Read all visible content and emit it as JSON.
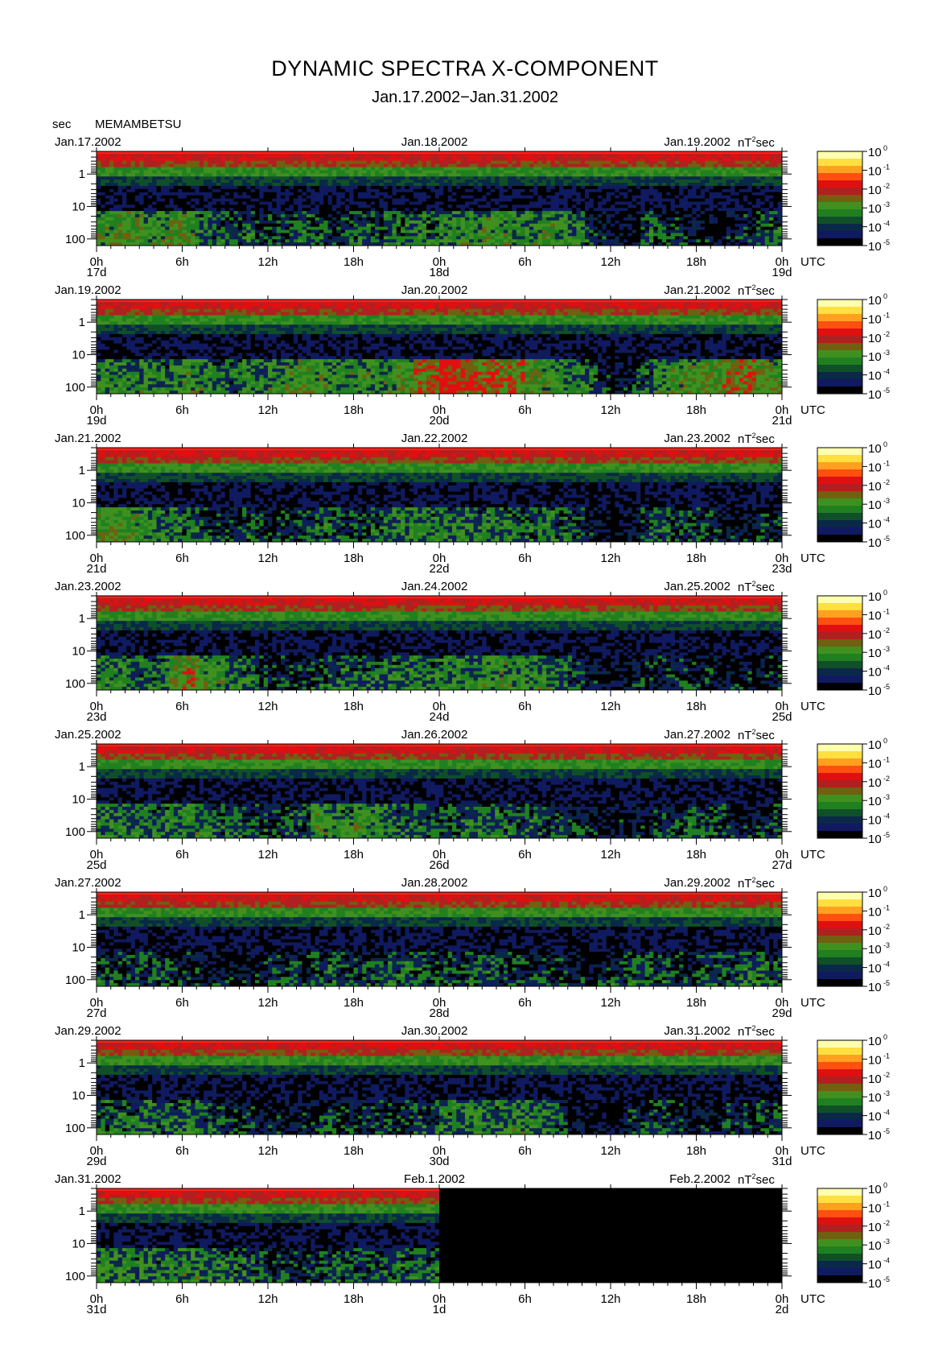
{
  "title": "DYNAMIC SPECTRA X-COMPONENT",
  "subtitle": "Jan.17.2002−Jan.31.2002",
  "station": "MEMAMBETSU",
  "y_unit": "sec",
  "x_unit": "UTC",
  "colorbar_unit": "nT",
  "colorbar_unit_sup": "2",
  "colorbar_unit_suffix": "sec",
  "colorbar": {
    "colors": [
      "#ffffb0",
      "#ffe040",
      "#ffa020",
      "#ff5010",
      "#e01010",
      "#b02020",
      "#706010",
      "#409020",
      "#208020",
      "#105028",
      "#0a2848",
      "#101a60",
      "#000000"
    ],
    "labels": [
      {
        "base": "10",
        "exp": "0"
      },
      {
        "base": "10",
        "exp": "-1"
      },
      {
        "base": "10",
        "exp": "-2"
      },
      {
        "base": "10",
        "exp": "-3"
      },
      {
        "base": "10",
        "exp": "-4"
      },
      {
        "base": "10",
        "exp": "-5"
      }
    ]
  },
  "chart_data": {
    "type": "heatmap",
    "title": "DYNAMIC SPECTRA X-COMPONENT",
    "subtitle": "Jan.17.2002−Jan.31.2002",
    "ylabel": "sec",
    "xlabel": "UTC",
    "y_scale": "log",
    "y_range_sec": [
      0.2,
      160
    ],
    "y_ticks": [
      1,
      10,
      100
    ],
    "x_ticks": [
      "0h",
      "6h",
      "12h",
      "18h",
      "0h",
      "6h",
      "12h",
      "18h",
      "0h"
    ],
    "hours_per_panel": 48,
    "color_scale": "log",
    "color_range": [
      1e-05,
      1
    ],
    "color_unit": "nT^2 sec",
    "panels": [
      {
        "date_left": "Jan.17.2002",
        "date_mid": "Jan.18.2002",
        "date_right": "Jan.19.2002",
        "day_labels": [
          "17d",
          "18d",
          "19d"
        ],
        "data_end_fraction": 1.0,
        "activity": [
          0.5,
          0.55,
          0.55,
          0.5,
          0.5,
          0.55,
          0.5,
          0.4,
          0.35,
          0.3,
          0.35,
          0.25,
          0.3,
          0.3,
          0.35,
          0.3,
          0.25,
          0.3,
          0.35,
          0.3,
          0.35,
          0.35,
          0.4,
          0.35,
          0.4,
          0.45,
          0.45,
          0.5,
          0.5,
          0.45,
          0.45,
          0.5,
          0.45,
          0.4,
          0.3,
          0.2,
          0.15,
          0.2,
          0.35,
          0.3,
          0.25,
          0.2,
          0.2,
          0.15,
          0.2,
          0.25,
          0.3,
          0.35
        ]
      },
      {
        "date_left": "Jan.19.2002",
        "date_mid": "Jan.20.2002",
        "date_right": "Jan.21.2002",
        "day_labels": [
          "19d",
          "20d",
          "21d"
        ],
        "data_end_fraction": 1.0,
        "activity": [
          0.45,
          0.45,
          0.4,
          0.45,
          0.4,
          0.45,
          0.5,
          0.45,
          0.4,
          0.35,
          0.45,
          0.4,
          0.45,
          0.5,
          0.55,
          0.5,
          0.45,
          0.5,
          0.5,
          0.45,
          0.5,
          0.55,
          0.7,
          0.75,
          0.8,
          0.75,
          0.7,
          0.7,
          0.65,
          0.65,
          0.55,
          0.5,
          0.45,
          0.4,
          0.35,
          0.25,
          0.2,
          0.25,
          0.35,
          0.45,
          0.5,
          0.55,
          0.55,
          0.6,
          0.65,
          0.65,
          0.6,
          0.55
        ]
      },
      {
        "date_left": "Jan.21.2002",
        "date_mid": "Jan.22.2002",
        "date_right": "Jan.23.2002",
        "day_labels": [
          "21d",
          "22d",
          "23d"
        ],
        "data_end_fraction": 1.0,
        "activity": [
          0.55,
          0.55,
          0.5,
          0.45,
          0.4,
          0.4,
          0.35,
          0.3,
          0.25,
          0.25,
          0.3,
          0.25,
          0.25,
          0.25,
          0.3,
          0.35,
          0.35,
          0.3,
          0.3,
          0.35,
          0.4,
          0.4,
          0.4,
          0.4,
          0.4,
          0.45,
          0.4,
          0.4,
          0.4,
          0.35,
          0.35,
          0.4,
          0.35,
          0.3,
          0.2,
          0.15,
          0.15,
          0.2,
          0.3,
          0.35,
          0.3,
          0.3,
          0.25,
          0.2,
          0.2,
          0.2,
          0.25,
          0.25
        ]
      },
      {
        "date_left": "Jan.23.2002",
        "date_mid": "Jan.24.2002",
        "date_right": "Jan.25.2002",
        "day_labels": [
          "23d",
          "24d",
          "25d"
        ],
        "data_end_fraction": 1.0,
        "activity": [
          0.45,
          0.45,
          0.4,
          0.35,
          0.4,
          0.55,
          0.65,
          0.5,
          0.5,
          0.4,
          0.35,
          0.3,
          0.25,
          0.25,
          0.25,
          0.3,
          0.35,
          0.35,
          0.35,
          0.35,
          0.4,
          0.4,
          0.4,
          0.4,
          0.4,
          0.45,
          0.45,
          0.5,
          0.5,
          0.45,
          0.45,
          0.45,
          0.4,
          0.3,
          0.2,
          0.15,
          0.15,
          0.2,
          0.25,
          0.25,
          0.25,
          0.25,
          0.25,
          0.2,
          0.2,
          0.2,
          0.2,
          0.25
        ]
      },
      {
        "date_left": "Jan.25.2002",
        "date_mid": "Jan.26.2002",
        "date_right": "Jan.27.2002",
        "day_labels": [
          "25d",
          "26d",
          "27d"
        ],
        "data_end_fraction": 1.0,
        "activity": [
          0.4,
          0.4,
          0.4,
          0.4,
          0.4,
          0.4,
          0.45,
          0.4,
          0.35,
          0.35,
          0.3,
          0.3,
          0.3,
          0.35,
          0.35,
          0.5,
          0.45,
          0.4,
          0.5,
          0.45,
          0.4,
          0.35,
          0.35,
          0.3,
          0.35,
          0.35,
          0.4,
          0.4,
          0.35,
          0.35,
          0.35,
          0.3,
          0.3,
          0.25,
          0.2,
          0.15,
          0.2,
          0.2,
          0.2,
          0.25,
          0.3,
          0.35,
          0.3,
          0.3,
          0.25,
          0.2,
          0.25,
          0.3
        ]
      },
      {
        "date_left": "Jan.27.2002",
        "date_mid": "Jan.28.2002",
        "date_right": "Jan.29.2002",
        "day_labels": [
          "27d",
          "28d",
          "29d"
        ],
        "data_end_fraction": 1.0,
        "activity": [
          0.3,
          0.3,
          0.3,
          0.3,
          0.3,
          0.25,
          0.25,
          0.2,
          0.2,
          0.2,
          0.2,
          0.25,
          0.3,
          0.3,
          0.25,
          0.3,
          0.35,
          0.3,
          0.3,
          0.3,
          0.35,
          0.35,
          0.35,
          0.3,
          0.3,
          0.3,
          0.35,
          0.35,
          0.3,
          0.3,
          0.25,
          0.25,
          0.25,
          0.2,
          0.2,
          0.25,
          0.3,
          0.35,
          0.35,
          0.3,
          0.3,
          0.25,
          0.3,
          0.3,
          0.3,
          0.35,
          0.35,
          0.35
        ]
      },
      {
        "date_left": "Jan.29.2002",
        "date_mid": "Jan.30.2002",
        "date_right": "Jan.31.2002",
        "day_labels": [
          "29d",
          "30d",
          "31d"
        ],
        "data_end_fraction": 1.0,
        "activity": [
          0.35,
          0.35,
          0.35,
          0.4,
          0.35,
          0.35,
          0.4,
          0.35,
          0.3,
          0.25,
          0.25,
          0.2,
          0.2,
          0.2,
          0.25,
          0.25,
          0.25,
          0.25,
          0.25,
          0.25,
          0.3,
          0.3,
          0.35,
          0.35,
          0.4,
          0.4,
          0.4,
          0.4,
          0.4,
          0.45,
          0.4,
          0.4,
          0.3,
          0.2,
          0.15,
          0.15,
          0.15,
          0.25,
          0.3,
          0.3,
          0.25,
          0.2,
          0.2,
          0.2,
          0.25,
          0.25,
          0.3,
          0.3
        ]
      },
      {
        "date_left": "Jan.31.2002",
        "date_mid": "Feb.1.2002",
        "date_right": "Feb.2.2002",
        "day_labels": [
          "31d",
          "1d",
          "2d"
        ],
        "data_end_fraction": 0.5,
        "activity": [
          0.45,
          0.45,
          0.4,
          0.4,
          0.4,
          0.4,
          0.45,
          0.4,
          0.4,
          0.35,
          0.35,
          0.3,
          0.25,
          0.25,
          0.25,
          0.3,
          0.35,
          0.3,
          0.3,
          0.3,
          0.35,
          0.35,
          0.35,
          0.35
        ]
      }
    ]
  }
}
